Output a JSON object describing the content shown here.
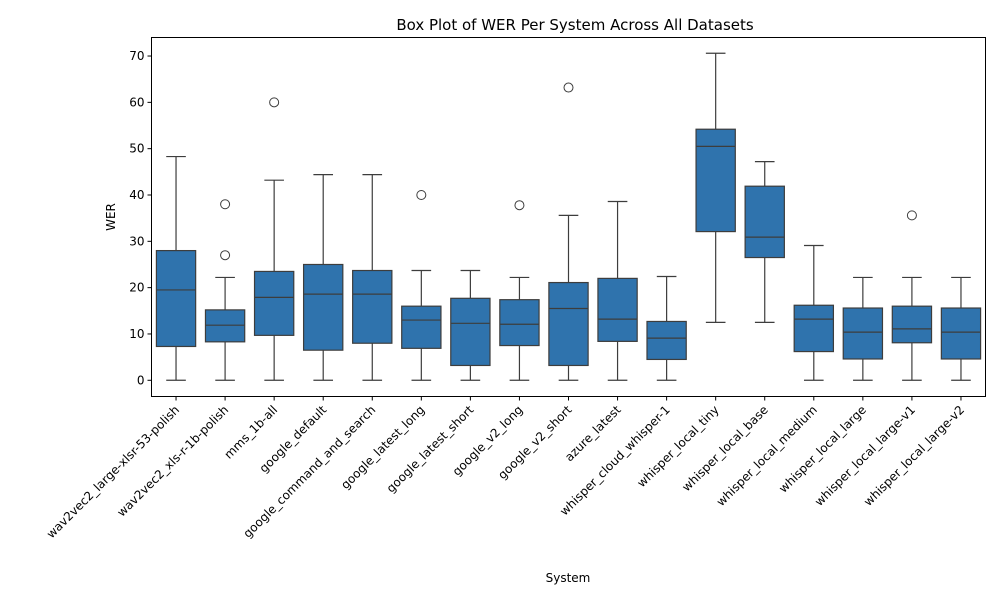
{
  "chart_data": {
    "type": "box",
    "title": "Box Plot of WER Per System Across All Datasets",
    "xlabel": "System",
    "ylabel": "WER",
    "ylim": [
      -3.5,
      74
    ],
    "yticks": [
      0,
      10,
      20,
      30,
      40,
      50,
      60,
      70
    ],
    "grid": false,
    "legend": "none",
    "color": "#2f73ad",
    "edge_color": "#3d3d3d",
    "categories": [
      "wav2vec2_large-xlsr-53-polish",
      "wav2vec2_xls-r-1b-polish",
      "mms_1b-all",
      "google_default",
      "google_command_and_search",
      "google_latest_long",
      "google_latest_short",
      "google_v2_long",
      "google_v2_short",
      "azure_latest",
      "whisper_cloud_whisper-1",
      "whisper_local_tiny",
      "whisper_local_base",
      "whisper_local_medium",
      "whisper_local_large",
      "whisper_local_large-v1",
      "whisper_local_large-v2"
    ],
    "boxes": [
      {
        "whislo": 0,
        "q1": 7.3,
        "med": 19.5,
        "q3": 28.0,
        "whishi": 48.3,
        "fliers": []
      },
      {
        "whislo": 0,
        "q1": 8.3,
        "med": 11.9,
        "q3": 15.2,
        "whishi": 22.2,
        "fliers": [
          27.0,
          38.0
        ]
      },
      {
        "whislo": 0,
        "q1": 9.7,
        "med": 17.9,
        "q3": 23.5,
        "whishi": 43.2,
        "fliers": [
          60.0
        ]
      },
      {
        "whislo": 0,
        "q1": 6.5,
        "med": 18.6,
        "q3": 25.0,
        "whishi": 44.4,
        "fliers": []
      },
      {
        "whislo": 0,
        "q1": 8.0,
        "med": 18.6,
        "q3": 23.7,
        "whishi": 44.4,
        "fliers": []
      },
      {
        "whislo": 0,
        "q1": 6.9,
        "med": 13.0,
        "q3": 16.0,
        "whishi": 23.7,
        "fliers": [
          40.0
        ]
      },
      {
        "whislo": 0,
        "q1": 3.2,
        "med": 12.3,
        "q3": 17.7,
        "whishi": 23.7,
        "fliers": []
      },
      {
        "whislo": 0,
        "q1": 7.5,
        "med": 12.1,
        "q3": 17.4,
        "whishi": 22.2,
        "fliers": [
          37.8
        ]
      },
      {
        "whislo": 0,
        "q1": 3.2,
        "med": 15.5,
        "q3": 21.1,
        "whishi": 35.6,
        "fliers": [
          63.2
        ]
      },
      {
        "whislo": 0,
        "q1": 8.4,
        "med": 13.2,
        "q3": 22.0,
        "whishi": 38.6,
        "fliers": []
      },
      {
        "whislo": 0,
        "q1": 4.5,
        "med": 9.1,
        "q3": 12.7,
        "whishi": 22.4,
        "fliers": []
      },
      {
        "whislo": 12.5,
        "q1": 32.1,
        "med": 50.5,
        "q3": 54.2,
        "whishi": 70.6,
        "fliers": []
      },
      {
        "whislo": 12.5,
        "q1": 26.5,
        "med": 30.9,
        "q3": 41.9,
        "whishi": 47.2,
        "fliers": []
      },
      {
        "whislo": 0,
        "q1": 6.2,
        "med": 13.2,
        "q3": 16.2,
        "whishi": 29.1,
        "fliers": []
      },
      {
        "whislo": 0,
        "q1": 4.6,
        "med": 10.4,
        "q3": 15.6,
        "whishi": 22.2,
        "fliers": []
      },
      {
        "whislo": 0,
        "q1": 8.1,
        "med": 11.1,
        "q3": 16.0,
        "whishi": 22.2,
        "fliers": [
          35.6
        ]
      },
      {
        "whislo": 0,
        "q1": 4.6,
        "med": 10.4,
        "q3": 15.6,
        "whishi": 22.2,
        "fliers": []
      }
    ]
  }
}
